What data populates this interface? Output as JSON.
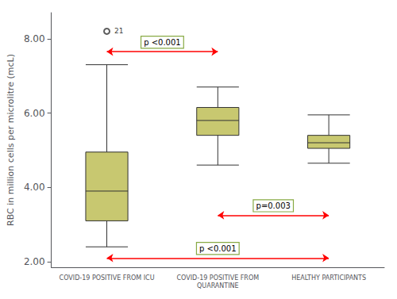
{
  "chart_data": {
    "type": "box",
    "categories": [
      "COVID-19 POSITIVE FROM ICU",
      "COVID-19 POSITIVE FROM\nQUARANTINE",
      "HEALTHY PARTICIPANTS"
    ],
    "boxes": [
      {
        "whisker_low": 2.4,
        "q1": 3.1,
        "median": 3.9,
        "q3": 4.95,
        "whisker_high": 7.3,
        "outlier": 8.2,
        "outlier_label": "21"
      },
      {
        "whisker_low": 4.6,
        "q1": 5.4,
        "median": 5.8,
        "q3": 6.15,
        "whisker_high": 6.7
      },
      {
        "whisker_low": 4.65,
        "q1": 5.05,
        "median": 5.2,
        "q3": 5.4,
        "whisker_high": 5.95
      }
    ],
    "color": "#c8c870",
    "ylabel": "RBC in million cells per microlitre (mcL)",
    "ylim": [
      1.85,
      8.7
    ],
    "yticks": [
      {
        "value": 2.0,
        "label": "2.00"
      },
      {
        "value": 4.0,
        "label": "4.00"
      },
      {
        "value": 6.0,
        "label": "6.00"
      },
      {
        "value": 8.0,
        "label": "8.00"
      }
    ],
    "grid": false,
    "annotations": [
      {
        "text": "p <0.001",
        "from": "COVID-19 POSITIVE FROM ICU",
        "to": "COVID-19 POSITIVE FROM\nQUARANTINE",
        "y": 7.65,
        "color": "red"
      },
      {
        "text": "p=0.003",
        "from": "COVID-19 POSITIVE FROM\nQUARANTINE",
        "to": "HEALTHY PARTICIPANTS",
        "y": 3.25,
        "color": "red"
      },
      {
        "text": "p <0.001",
        "from": "COVID-19 POSITIVE FROM ICU",
        "to": "HEALTHY PARTICIPANTS",
        "y": 2.1,
        "color": "red"
      }
    ]
  }
}
